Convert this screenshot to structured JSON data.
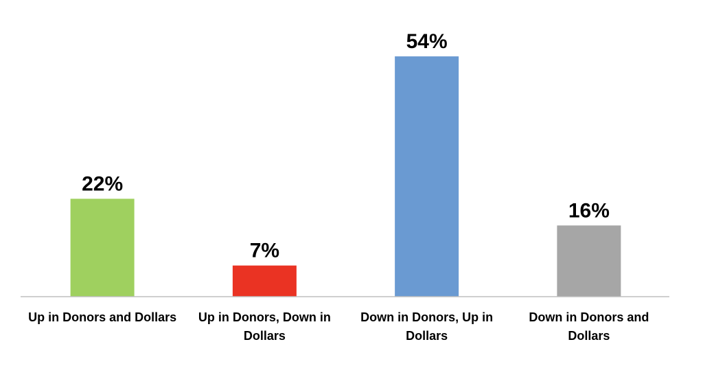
{
  "chart_data": {
    "type": "bar",
    "title": "",
    "xlabel": "",
    "ylabel": "",
    "ylim": [
      0,
      60
    ],
    "grid": false,
    "legend": "none",
    "value_suffix": "%",
    "categories": [
      "Up in Donors and Dollars",
      "Up in Donors, Down in Dollars",
      "Down in Donors, Up in Dollars",
      "Down in Donors and Dollars"
    ],
    "category_lines": [
      [
        "Up in Donors and Dollars"
      ],
      [
        "Up in Donors, Down in",
        "Dollars"
      ],
      [
        "Down in Donors, Up in",
        "Dollars"
      ],
      [
        "Down in Donors and",
        "Dollars"
      ]
    ],
    "values": [
      22,
      7,
      54,
      16
    ],
    "value_labels": [
      "22%",
      "7%",
      "54%",
      "16%"
    ],
    "colors": [
      "#9fd05f",
      "#ea3323",
      "#6a9ad2",
      "#a6a6a6"
    ],
    "baseline_color": "#bfbfbf"
  }
}
